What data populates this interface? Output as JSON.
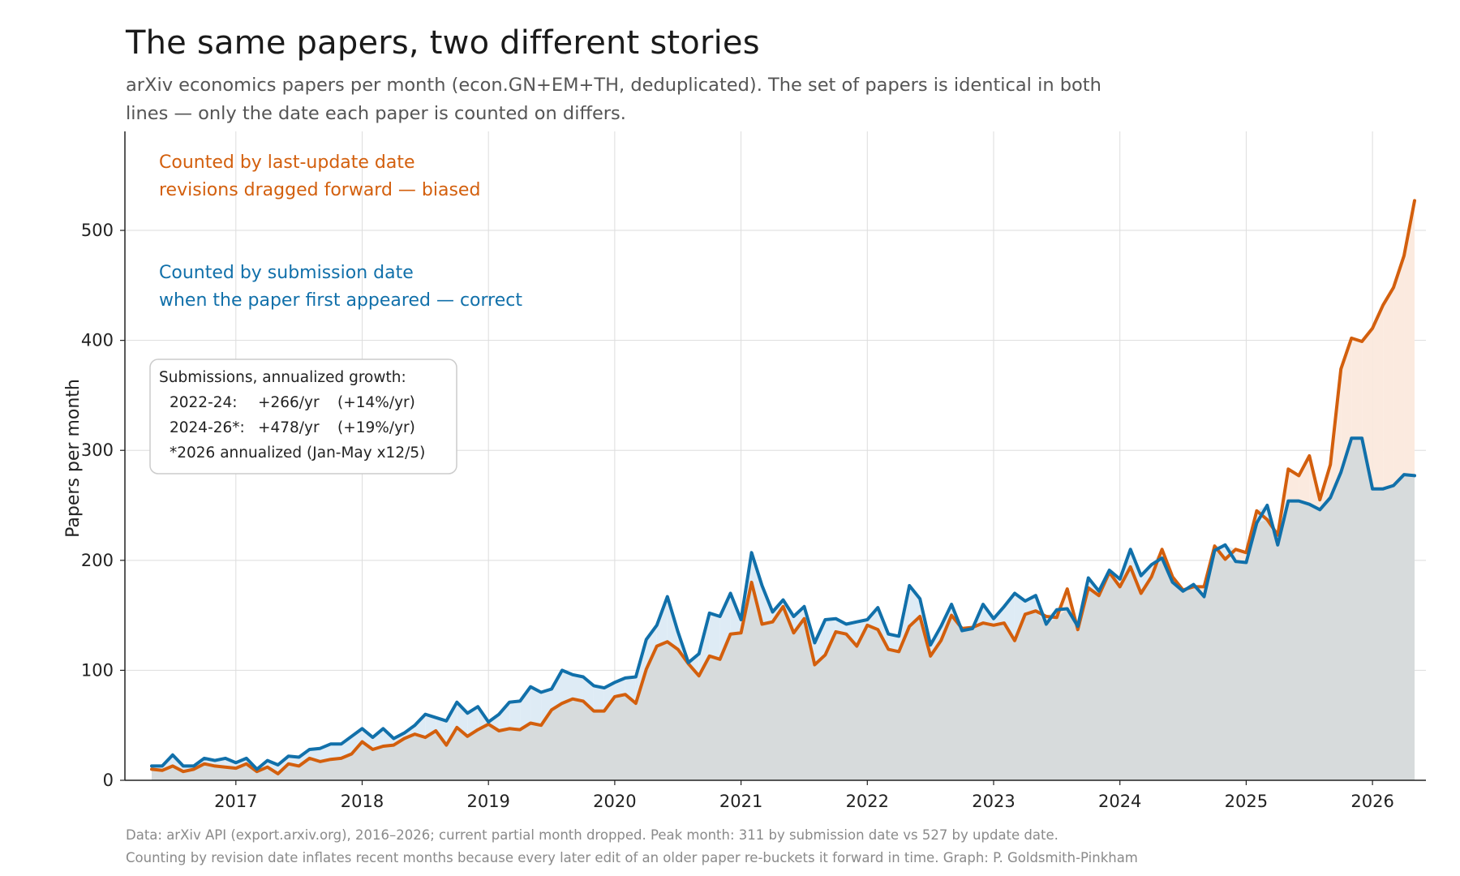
{
  "header": {
    "title": "The same papers, two different stories",
    "subtitle": "arXiv economics papers per month (econ.GN+EM+TH, deduplicated). The set of papers is identical in both lines — only the date each paper is counted on differs."
  },
  "footer": {
    "line1": "Data: arXiv API (export.arxiv.org), 2016–2026; current partial month dropped.   Peak month: 311 by submission date vs 527 by update date.",
    "line2": "Counting by revision date inflates recent months because every later edit of an older paper re-buckets it forward in time.   Graph: P. Goldsmith-Pinkham"
  },
  "stats_box": {
    "title": "Submissions, annualized growth:",
    "rows": [
      {
        "label": "2022-24:",
        "abs": "+266/yr",
        "pct": "(+14%/yr)"
      },
      {
        "label": "2024-26*:",
        "abs": "+478/yr",
        "pct": "(+19%/yr)"
      }
    ],
    "note": "*2026 annualized (Jan-May x12/5)"
  },
  "colors": {
    "update": "#d35f0d",
    "submission": "#1170aa",
    "gap_fill": "#deebf5",
    "update_excess_fill": "#fbeadf",
    "base_fill": "#d7dbdc",
    "grid": "#dddddd"
  },
  "chart_data": {
    "type": "line",
    "title": "The same papers, two different stories",
    "xlabel": "",
    "ylabel": "Papers per month",
    "x_start": "2016-05",
    "x_end": "2026-05",
    "x_ticks": [
      "2017",
      "2018",
      "2019",
      "2020",
      "2021",
      "2022",
      "2023",
      "2024",
      "2025",
      "2026"
    ],
    "ylim": [
      0,
      590
    ],
    "y_ticks": [
      0,
      100,
      200,
      300,
      400,
      500
    ],
    "grid": true,
    "series": [
      {
        "name": "Counted by submission date",
        "description": "when the paper first appeared — correct",
        "values": [
          13,
          13,
          23,
          13,
          13,
          20,
          18,
          20,
          16,
          20,
          10,
          18,
          14,
          22,
          21,
          28,
          29,
          33,
          33,
          40,
          47,
          39,
          47,
          38,
          43,
          50,
          60,
          57,
          54,
          71,
          61,
          67,
          53,
          60,
          71,
          72,
          85,
          80,
          83,
          100,
          96,
          94,
          86,
          84,
          89,
          93,
          94,
          128,
          141,
          167,
          135,
          107,
          115,
          152,
          149,
          170,
          146,
          207,
          177,
          153,
          164,
          149,
          158,
          125,
          146,
          147,
          142,
          144,
          146,
          157,
          133,
          131,
          177,
          165,
          123,
          140,
          160,
          136,
          138,
          160,
          147,
          158,
          170,
          163,
          168,
          142,
          155,
          156,
          140,
          184,
          172,
          191,
          183,
          210,
          186,
          196,
          202,
          180,
          172,
          178,
          167,
          209,
          214,
          199,
          198,
          234,
          250,
          214,
          254,
          254,
          251,
          246,
          257,
          280,
          311,
          311,
          265,
          265,
          268,
          278,
          277
        ]
      },
      {
        "name": "Counted by last-update date",
        "description": "revisions dragged forward — biased",
        "values": [
          10,
          9,
          13,
          8,
          10,
          15,
          13,
          12,
          11,
          15,
          8,
          12,
          6,
          15,
          13,
          20,
          17,
          19,
          20,
          24,
          35,
          28,
          31,
          32,
          38,
          42,
          39,
          45,
          32,
          48,
          40,
          46,
          51,
          45,
          47,
          46,
          52,
          50,
          64,
          70,
          74,
          72,
          63,
          63,
          76,
          78,
          70,
          101,
          122,
          126,
          119,
          106,
          95,
          113,
          110,
          133,
          134,
          180,
          142,
          144,
          158,
          134,
          147,
          105,
          114,
          135,
          133,
          122,
          141,
          137,
          119,
          117,
          140,
          149,
          113,
          127,
          150,
          138,
          139,
          143,
          141,
          143,
          127,
          151,
          154,
          149,
          148,
          174,
          137,
          175,
          168,
          189,
          176,
          194,
          170,
          185,
          210,
          185,
          173,
          176,
          176,
          213,
          201,
          210,
          207,
          245,
          237,
          223,
          283,
          277,
          295,
          255,
          287,
          374,
          402,
          399,
          411,
          432,
          448,
          477,
          527
        ]
      }
    ],
    "annotations": [
      {
        "text": "Counted by last-update date",
        "series": "Counted by last-update date"
      },
      {
        "text": "revisions dragged forward — biased",
        "series": "Counted by last-update date"
      },
      {
        "text": "Counted by submission date",
        "series": "Counted by submission date"
      },
      {
        "text": "when the paper first appeared — correct",
        "series": "Counted by submission date"
      }
    ]
  }
}
